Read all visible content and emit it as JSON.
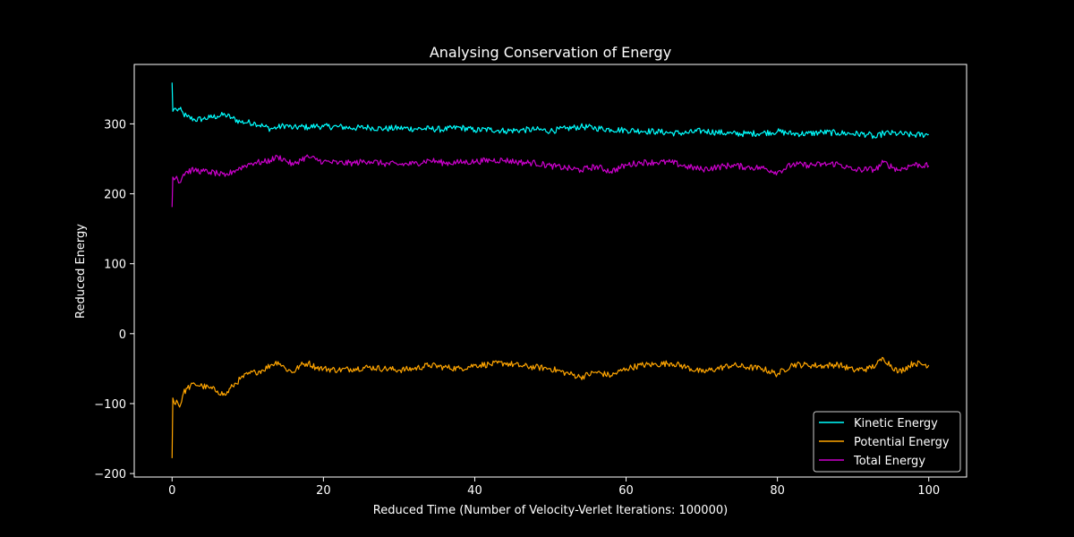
{
  "chart_data": {
    "type": "line",
    "title": "Analysing Conservation of Energy",
    "xlabel": "Reduced Time (Number of Velocity-Verlet Iterations: 100000)",
    "ylabel": "Reduced Energy",
    "xlim": [
      -5,
      105
    ],
    "ylim": [
      -205,
      385
    ],
    "xticks": [
      0,
      20,
      40,
      60,
      80,
      100
    ],
    "xtick_labels": [
      "0",
      "20",
      "40",
      "60",
      "80",
      "100"
    ],
    "yticks": [
      -200,
      -100,
      0,
      100,
      200,
      300
    ],
    "ytick_labels": [
      "−200",
      "−100",
      "0",
      "100",
      "200",
      "300"
    ],
    "grid": false,
    "legend_position": "lower-right",
    "background": "#000000",
    "foreground": "#ffffff",
    "series": [
      {
        "name": "Kinetic Energy",
        "color": "#00ffff",
        "x": [
          0,
          0.1,
          0.3,
          0.6,
          1,
          1.5,
          2,
          3,
          4,
          5,
          6,
          7,
          8,
          9,
          10,
          11,
          12,
          13,
          14,
          15,
          16,
          17,
          18,
          19,
          20,
          22,
          24,
          26,
          28,
          30,
          32,
          34,
          36,
          38,
          40,
          42,
          44,
          46,
          48,
          50,
          52,
          54,
          56,
          58,
          60,
          62,
          64,
          66,
          68,
          70,
          72,
          74,
          76,
          78,
          80,
          82,
          84,
          86,
          88,
          90,
          92,
          93,
          94,
          96,
          98,
          100
        ],
        "y": [
          359,
          318,
          322,
          320,
          321,
          314,
          310,
          306,
          307,
          309,
          311,
          313,
          308,
          303,
          302,
          301,
          297,
          293,
          295,
          298,
          294,
          296,
          295,
          297,
          296,
          296,
          294,
          295,
          293,
          294,
          293,
          293,
          292,
          295,
          291,
          292,
          290,
          291,
          292,
          290,
          293,
          296,
          294,
          292,
          291,
          290,
          289,
          287,
          287,
          290,
          288,
          286,
          286,
          287,
          289,
          286,
          286,
          288,
          287,
          286,
          285,
          280,
          287,
          286,
          284,
          285
        ]
      },
      {
        "name": "Potential Energy",
        "color": "#ffa500",
        "x": [
          0,
          0.1,
          0.3,
          0.6,
          1,
          1.5,
          2,
          3,
          4,
          5,
          6,
          7,
          8,
          9,
          10,
          11,
          12,
          13,
          14,
          15,
          16,
          17,
          18,
          19,
          20,
          22,
          24,
          26,
          28,
          30,
          32,
          34,
          36,
          38,
          40,
          42,
          44,
          46,
          48,
          50,
          52,
          54,
          56,
          58,
          60,
          62,
          64,
          66,
          68,
          70,
          72,
          74,
          76,
          78,
          80,
          82,
          84,
          86,
          88,
          90,
          92,
          93,
          94,
          96,
          98,
          100
        ],
        "y": [
          -178,
          -92,
          -100,
          -95,
          -105,
          -85,
          -78,
          -72,
          -75,
          -78,
          -82,
          -88,
          -75,
          -65,
          -58,
          -55,
          -52,
          -45,
          -40,
          -50,
          -55,
          -45,
          -42,
          -48,
          -50,
          -52,
          -50,
          -48,
          -50,
          -52,
          -50,
          -45,
          -48,
          -50,
          -45,
          -44,
          -42,
          -46,
          -48,
          -50,
          -56,
          -62,
          -55,
          -60,
          -50,
          -45,
          -44,
          -42,
          -48,
          -55,
          -50,
          -45,
          -48,
          -50,
          -58,
          -44,
          -45,
          -46,
          -44,
          -52,
          -50,
          -45,
          -35,
          -55,
          -42,
          -45
        ]
      },
      {
        "name": "Total Energy",
        "color": "#cc00cc",
        "x": [
          0,
          0.1,
          0.3,
          0.6,
          1,
          1.5,
          2,
          3,
          4,
          5,
          6,
          7,
          8,
          9,
          10,
          11,
          12,
          13,
          14,
          15,
          16,
          17,
          18,
          19,
          20,
          22,
          24,
          26,
          28,
          30,
          32,
          34,
          36,
          38,
          40,
          42,
          44,
          46,
          48,
          50,
          52,
          54,
          56,
          58,
          60,
          62,
          64,
          66,
          68,
          70,
          72,
          74,
          76,
          78,
          80,
          82,
          84,
          86,
          88,
          90,
          92,
          93,
          94,
          96,
          98,
          100
        ],
        "y": [
          181,
          224,
          220,
          225,
          216,
          228,
          232,
          234,
          232,
          231,
          229,
          225,
          232,
          237,
          242,
          245,
          245,
          248,
          253,
          248,
          241,
          249,
          253,
          249,
          246,
          244,
          244,
          247,
          243,
          242,
          243,
          248,
          244,
          245,
          246,
          248,
          248,
          245,
          244,
          240,
          237,
          234,
          239,
          232,
          241,
          245,
          245,
          245,
          239,
          235,
          238,
          241,
          238,
          237,
          231,
          242,
          241,
          242,
          243,
          234,
          235,
          235,
          245,
          234,
          242,
          240
        ]
      }
    ]
  }
}
